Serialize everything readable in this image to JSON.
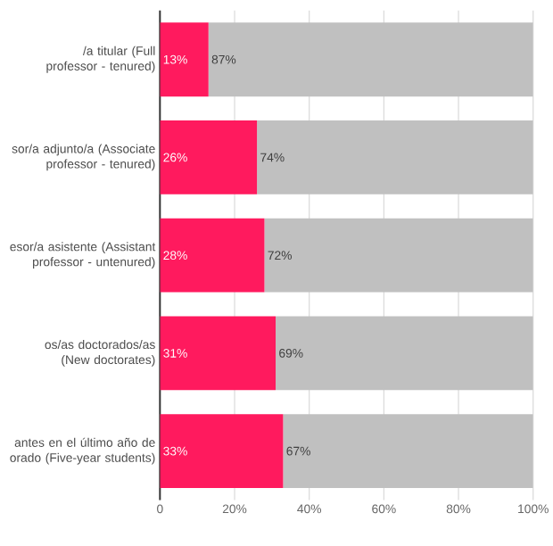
{
  "chart_data": {
    "type": "bar",
    "orientation": "horizontal",
    "stacked": true,
    "categories": [
      "/a titular (Full professor - tenured)",
      "sor/a adjunto/a (Associate professor - tenured)",
      "esor/a asistente (Assistant professor - untenured)",
      "os/as doctorados/as (New doctorates)",
      "antes en el último año de orado (Five-year students)"
    ],
    "series": [
      {
        "color": "#ff1a5e",
        "values": [
          13,
          26,
          28,
          31,
          33
        ],
        "value_labels": [
          "13%",
          "26%",
          "28%",
          "31%",
          "33%"
        ]
      },
      {
        "color": "#c0c0c0",
        "values": [
          87,
          74,
          72,
          69,
          67
        ],
        "value_labels": [
          "87%",
          "74%",
          "72%",
          "69%",
          "67%"
        ]
      }
    ],
    "xlim": [
      0,
      100
    ],
    "xticks": [
      0,
      {
        "value": 20,
        "label": "20%"
      },
      {
        "value": 40,
        "label": "40%"
      },
      {
        "value": 60,
        "label": "60%"
      },
      {
        "value": 80,
        "label": "80%"
      },
      {
        "value": 100,
        "label": "100%"
      }
    ],
    "grid": "x"
  }
}
